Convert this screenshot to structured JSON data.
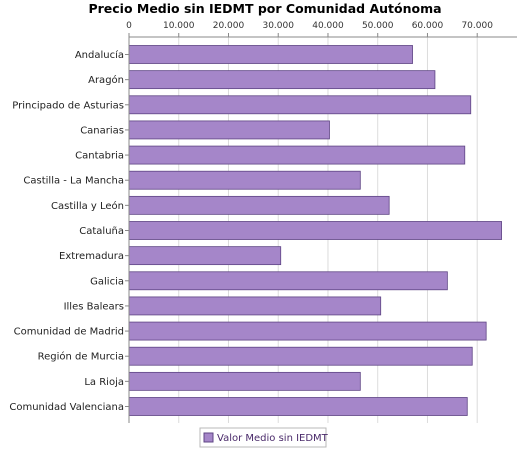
{
  "chart_data": {
    "type": "bar",
    "orientation": "horizontal",
    "title": "Precio Medio sin IEDMT por Comunidad Autónoma",
    "categories": [
      "Andalucía",
      "Aragón",
      "Principado de Asturias",
      "Canarias",
      "Cantabria",
      "Castilla - La Mancha",
      "Castilla y León",
      "Cataluña",
      "Extremadura",
      "Galicia",
      "Illes Balears",
      "Comunidad de Madrid",
      "Región de Murcia",
      "La Rioja",
      "Comunidad Valenciana"
    ],
    "series": [
      {
        "name": "Valor Medio sin IEDMT",
        "values": [
          57000,
          61500,
          68700,
          40300,
          67500,
          46500,
          52300,
          74900,
          30500,
          64000,
          50600,
          71800,
          69000,
          46500,
          68000
        ]
      }
    ],
    "xlim": [
      0,
      78000
    ],
    "xticks": [
      "0",
      "10.000",
      "20.000",
      "30.000",
      "40.000",
      "50.000",
      "60.000",
      "70.000"
    ],
    "tick_values": [
      0,
      10000,
      20000,
      30000,
      40000,
      50000,
      60000,
      70000
    ],
    "grid": "vertical",
    "axis_position": "top",
    "legend": "bottom",
    "colors": {
      "bar_fill": "#a586c9",
      "bar_stroke": "#5e4484",
      "grid": "#dcdcdc",
      "axis": "#888888"
    }
  }
}
